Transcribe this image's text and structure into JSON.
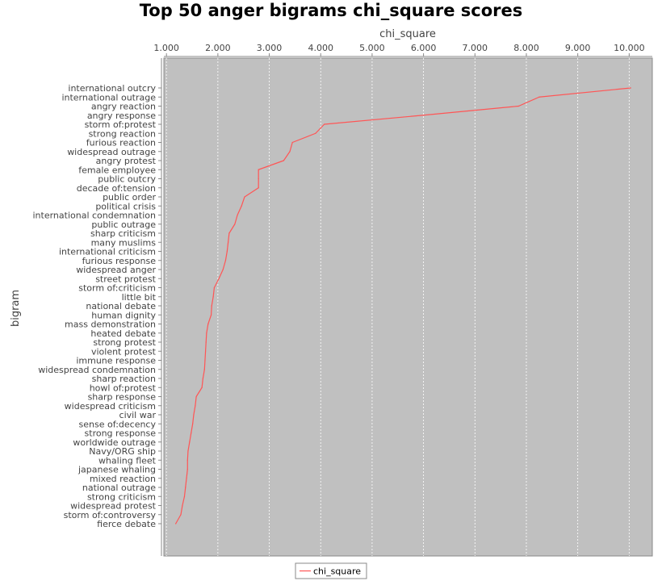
{
  "chart_data": {
    "type": "line",
    "title": "Top 50 anger bigrams chi_square scores",
    "xlabel": "chi_square",
    "ylabel": "bigram",
    "orientation": "horizontal",
    "x_axis_position": "top",
    "xlim": [
      0.95,
      10.45
    ],
    "xticks": [
      1,
      2,
      3,
      4,
      5,
      6,
      7,
      8,
      9,
      10
    ],
    "xtick_labels": [
      "1.000",
      "2.000",
      "3.000",
      "4.000",
      "5.000",
      "6.000",
      "7.000",
      "8.000",
      "9.000",
      "10.000"
    ],
    "grid": true,
    "legend_position": "bottom",
    "colors": {
      "plot_bg": "#c0c0c0",
      "series": "#ff5555",
      "grid": "#ffffff",
      "axis": "#888888"
    },
    "categories": [
      "international outcry",
      "international outrage",
      "angry reaction",
      "angry response",
      "storm of:protest",
      "strong reaction",
      "furious reaction",
      "widespread outrage",
      "angry protest",
      "female employee",
      "public outcry",
      "decade of:tension",
      "public order",
      "political crisis",
      "international condemnation",
      "public outrage",
      "sharp criticism",
      "many muslims",
      "international criticism",
      "furious response",
      "widespread anger",
      "street protest",
      "storm of:criticism",
      "little bit",
      "national debate",
      "human dignity",
      "mass demonstration",
      "heated debate",
      "strong protest",
      "violent protest",
      "immune response",
      "widespread condemnation",
      "sharp reaction",
      "howl of:protest",
      "sharp response",
      "widespread criticism",
      "civil war",
      "sense of:decency",
      "strong response",
      "worldwide outrage",
      "Navy/ORG ship",
      "whaling fleet",
      "japanese whaling",
      "mixed reaction",
      "national outrage",
      "strong criticism",
      "widespread protest",
      "storm of:controversy",
      "fierce debate"
    ],
    "series": [
      {
        "name": "chi_square",
        "values": [
          10.03,
          8.25,
          7.85,
          6.0,
          4.07,
          3.9,
          3.45,
          3.4,
          3.28,
          2.79,
          2.79,
          2.79,
          2.52,
          2.46,
          2.38,
          2.33,
          2.22,
          2.2,
          2.18,
          2.15,
          2.1,
          2.02,
          1.93,
          1.91,
          1.88,
          1.87,
          1.81,
          1.78,
          1.77,
          1.76,
          1.75,
          1.74,
          1.71,
          1.69,
          1.58,
          1.56,
          1.53,
          1.51,
          1.48,
          1.45,
          1.42,
          1.41,
          1.41,
          1.39,
          1.37,
          1.35,
          1.31,
          1.28,
          1.18
        ]
      }
    ]
  }
}
